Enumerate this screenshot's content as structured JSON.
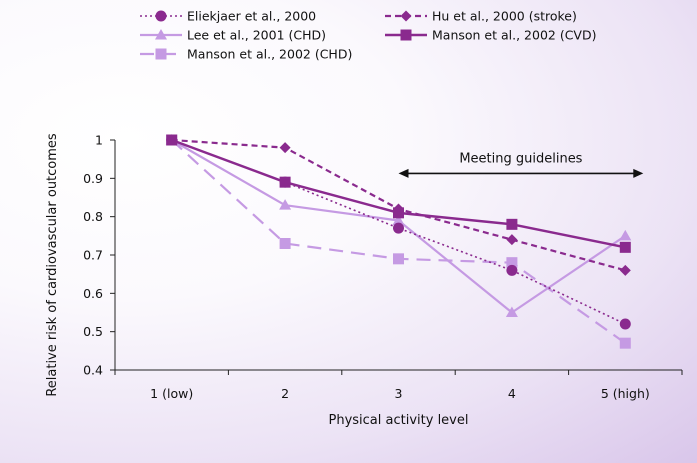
{
  "chart_data": {
    "type": "line",
    "xlabel": "Physical activity level",
    "ylabel": "Relative risk of cardiovascular outcomes",
    "categories": [
      "1 (low)",
      "2",
      "3",
      "4",
      "5 (high)"
    ],
    "ylim": [
      0.4,
      1.0
    ],
    "yticks": [
      "0.4",
      "0.5",
      "0.6",
      "0.7",
      "0.8",
      "0.9",
      "1"
    ],
    "grid": false,
    "legend_position": "top",
    "series": [
      {
        "name": "Eliekjaer et al., 2000",
        "values": [
          1.0,
          0.89,
          0.77,
          0.66,
          0.52
        ],
        "color": "#8a2a8e",
        "line": "dotted",
        "marker": "circle"
      },
      {
        "name": "Hu et al., 2000 (stroke)",
        "values": [
          1.0,
          0.98,
          0.82,
          0.74,
          0.66
        ],
        "color": "#8a2a8e",
        "line": "dashed",
        "marker": "diamond"
      },
      {
        "name": "Lee et al., 2001 (CHD)",
        "values": [
          1.0,
          0.83,
          0.79,
          0.55,
          0.75
        ],
        "color": "#c59ae3",
        "line": "solid",
        "marker": "triangle"
      },
      {
        "name": "Manson et al., 2002 (CVD)",
        "values": [
          1.0,
          0.89,
          0.81,
          0.78,
          0.72
        ],
        "color": "#8a2a8e",
        "line": "solid-thick",
        "marker": "square"
      },
      {
        "name": "Manson et al., 2002 (CHD)",
        "values": [
          1.0,
          0.73,
          0.69,
          0.68,
          0.47
        ],
        "color": "#c59ae3",
        "line": "longdash",
        "marker": "square"
      }
    ],
    "annotations": [
      {
        "text": "Meeting guidelines",
        "type": "double-arrow",
        "x_from": "3",
        "x_to": "5 (high)",
        "y": 0.905
      }
    ]
  }
}
